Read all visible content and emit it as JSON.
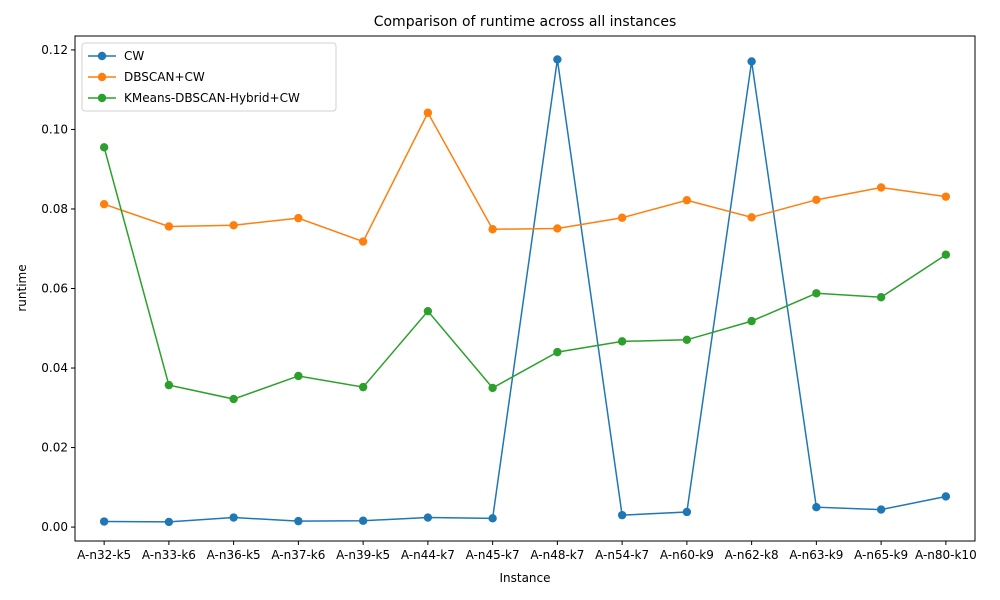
{
  "chart_data": {
    "type": "line",
    "title": "Comparison of runtime across all instances",
    "xlabel": "Instance",
    "ylabel": "runtime",
    "ylim": [
      -0.0035,
      0.1235
    ],
    "yticks": [
      "0.00",
      "0.02",
      "0.04",
      "0.06",
      "0.08",
      "0.10",
      "0.12"
    ],
    "grid": false,
    "legend_position": "top-left",
    "categories": [
      "A-n32-k5",
      "A-n33-k6",
      "A-n36-k5",
      "A-n37-k6",
      "A-n39-k5",
      "A-n44-k7",
      "A-n45-k7",
      "A-n48-k7",
      "A-n54-k7",
      "A-n60-k9",
      "A-n62-k8",
      "A-n63-k9",
      "A-n65-k9",
      "A-n80-k10"
    ],
    "series": [
      {
        "name": "CW",
        "color": "#1f77b4",
        "values": [
          0.0014,
          0.0013,
          0.0024,
          0.0015,
          0.0016,
          0.0024,
          0.0022,
          0.1176,
          0.003,
          0.0038,
          0.1171,
          0.005,
          0.0044,
          0.0077
        ]
      },
      {
        "name": "DBSCAN+CW",
        "color": "#ff7f0e",
        "values": [
          0.0812,
          0.0756,
          0.0759,
          0.0777,
          0.0718,
          0.1042,
          0.0749,
          0.0751,
          0.0778,
          0.0822,
          0.0779,
          0.0823,
          0.0854,
          0.0831
        ]
      },
      {
        "name": "KMeans-DBSCAN-Hybrid+CW",
        "color": "#2ca02c",
        "values": [
          0.0955,
          0.0357,
          0.0322,
          0.038,
          0.0352,
          0.0543,
          0.035,
          0.044,
          0.0467,
          0.0471,
          0.0518,
          0.0588,
          0.0578,
          0.0685
        ]
      }
    ]
  }
}
